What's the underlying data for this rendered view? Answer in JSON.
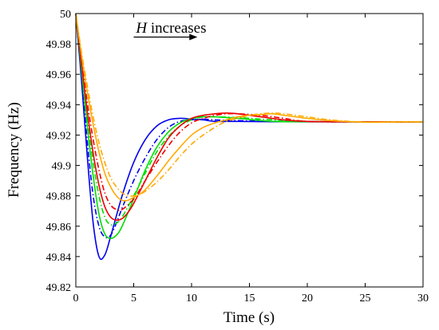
{
  "chart_data": {
    "type": "line",
    "xlabel": "Time (s)",
    "ylabel": "Frequency (Hz)",
    "xlim": [
      0,
      30
    ],
    "ylim": [
      49.82,
      50
    ],
    "x_ticks": [
      "0",
      "5",
      "10",
      "15",
      "20",
      "25",
      "30"
    ],
    "y_ticks": [
      "49.82",
      "49.84",
      "49.86",
      "49.88",
      "49.9",
      "49.92",
      "49.94",
      "49.96",
      "49.98",
      "50"
    ],
    "x_tick_values": [
      0,
      5,
      10,
      15,
      20,
      25,
      30
    ],
    "y_tick_values": [
      49.82,
      49.84,
      49.86,
      49.88,
      49.9,
      49.92,
      49.94,
      49.96,
      49.98,
      50
    ],
    "grid": false,
    "legend": "none",
    "annotation": {
      "italic_part": "H",
      "rest": " increases",
      "arrow_from": [
        5.0,
        49.9845
      ],
      "arrow_to": [
        10.5,
        49.9845
      ],
      "text_at": [
        5.2,
        49.9875
      ]
    },
    "series": [
      {
        "color": "#0000ee",
        "dash": "solid",
        "x": [
          0,
          0.5,
          1,
          1.5,
          2,
          2.5,
          3,
          4,
          5,
          6,
          7,
          8,
          9,
          10,
          11,
          12,
          14,
          17,
          20,
          25,
          30
        ],
        "y": [
          50,
          49.955,
          49.905,
          49.862,
          49.84,
          49.841,
          49.853,
          49.88,
          49.902,
          49.917,
          49.926,
          49.93,
          49.931,
          49.9305,
          49.93,
          49.929,
          49.929,
          49.9288,
          49.9287,
          49.9287,
          49.9287
        ]
      },
      {
        "color": "#0000ee",
        "dash": "dashdot",
        "x": [
          0,
          0.5,
          1,
          1.5,
          2,
          2.5,
          3,
          3.5,
          4,
          5,
          6,
          7,
          8,
          9,
          10,
          11,
          12,
          14,
          17,
          20,
          25,
          30
        ],
        "y": [
          50,
          49.958,
          49.915,
          49.88,
          49.86,
          49.853,
          49.854,
          49.862,
          49.872,
          49.89,
          49.905,
          49.917,
          49.925,
          49.929,
          49.93,
          49.9305,
          49.93,
          49.9295,
          49.929,
          49.9288,
          49.9287,
          49.9287
        ]
      },
      {
        "color": "#00dd00",
        "dash": "solid",
        "x": [
          0,
          0.5,
          1,
          1.5,
          2,
          2.5,
          3,
          3.5,
          4,
          5,
          6,
          7,
          8,
          9,
          10,
          11,
          12,
          14,
          17,
          20,
          25,
          30
        ],
        "y": [
          50,
          49.962,
          49.925,
          49.893,
          49.868,
          49.855,
          49.852,
          49.854,
          49.86,
          49.878,
          49.897,
          49.912,
          49.922,
          49.928,
          49.931,
          49.932,
          49.932,
          49.931,
          49.929,
          49.9288,
          49.9287,
          49.9287
        ]
      },
      {
        "color": "#00dd00",
        "dash": "dashdot",
        "x": [
          0,
          0.5,
          1,
          1.5,
          2,
          2.5,
          3,
          3.5,
          4,
          5,
          6,
          7,
          8,
          9,
          10,
          11,
          12,
          14,
          17,
          20,
          25,
          30
        ],
        "y": [
          50,
          49.964,
          49.93,
          49.902,
          49.88,
          49.866,
          49.861,
          49.862,
          49.866,
          49.88,
          49.895,
          49.909,
          49.919,
          49.926,
          49.93,
          49.932,
          49.932,
          49.9315,
          49.93,
          49.929,
          49.9287,
          49.9287
        ]
      },
      {
        "color": "#ee0000",
        "dash": "solid",
        "x": [
          0,
          0.5,
          1,
          1.5,
          2,
          2.5,
          3,
          3.5,
          4,
          4.5,
          5,
          6,
          7,
          8,
          9,
          10,
          11,
          12,
          13,
          14,
          16,
          18,
          20,
          25,
          30
        ],
        "y": [
          50,
          49.966,
          49.935,
          49.908,
          49.887,
          49.873,
          49.866,
          49.864,
          49.865,
          49.869,
          49.875,
          49.89,
          49.905,
          49.918,
          49.926,
          49.931,
          49.933,
          49.934,
          49.9345,
          49.934,
          49.932,
          49.93,
          49.929,
          49.9287,
          49.9287
        ]
      },
      {
        "color": "#ee0000",
        "dash": "dashdot",
        "x": [
          0,
          0.5,
          1,
          1.5,
          2,
          2.5,
          3,
          3.5,
          4,
          5,
          6,
          7,
          8,
          9,
          10,
          11,
          12,
          13,
          14,
          16,
          18,
          20,
          25,
          30
        ],
        "y": [
          50,
          49.969,
          49.941,
          49.917,
          49.897,
          49.882,
          49.874,
          49.871,
          49.871,
          49.878,
          49.89,
          49.902,
          49.913,
          49.922,
          49.928,
          49.931,
          49.933,
          49.934,
          49.934,
          49.933,
          49.931,
          49.929,
          49.9287,
          49.9287
        ]
      },
      {
        "color": "#ffaa00",
        "dash": "solid",
        "x": [
          0,
          0.5,
          1,
          1.5,
          2,
          2.5,
          3,
          3.5,
          4,
          4.5,
          5,
          5.5,
          6,
          7,
          8,
          9,
          10,
          11,
          12,
          13,
          14,
          15,
          16,
          17,
          18,
          19,
          20,
          22,
          25,
          28,
          30
        ],
        "y": [
          50,
          49.972,
          49.948,
          49.927,
          49.909,
          49.895,
          49.886,
          49.88,
          49.877,
          49.877,
          49.879,
          49.881,
          49.884,
          49.893,
          49.903,
          49.912,
          49.92,
          49.925,
          49.928,
          49.93,
          49.932,
          49.933,
          49.9335,
          49.934,
          49.933,
          49.932,
          49.931,
          49.9295,
          49.9285,
          49.9287,
          49.9287
        ]
      },
      {
        "color": "#ffaa00",
        "dash": "dashdot",
        "x": [
          0,
          0.5,
          1,
          1.5,
          2,
          2.5,
          3,
          3.5,
          4,
          4.5,
          5,
          5.5,
          6,
          7,
          8,
          9,
          10,
          11,
          12,
          13,
          14,
          15,
          16,
          17,
          18,
          19,
          20,
          22,
          25,
          28,
          30
        ],
        "y": [
          50,
          49.974,
          49.952,
          49.932,
          49.915,
          49.902,
          49.892,
          49.886,
          49.882,
          49.88,
          49.88,
          49.881,
          49.883,
          49.889,
          49.897,
          49.906,
          49.914,
          49.92,
          49.925,
          49.929,
          49.931,
          49.933,
          49.934,
          49.9345,
          49.934,
          49.933,
          49.932,
          49.93,
          49.9285,
          49.9287,
          49.9287
        ]
      }
    ]
  }
}
